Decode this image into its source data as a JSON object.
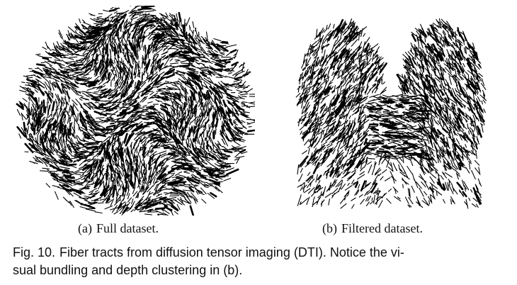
{
  "figure": {
    "panels": [
      {
        "tag": "(a)",
        "label": "Full dataset."
      },
      {
        "tag": "(b)",
        "label": "Filtered dataset."
      }
    ],
    "caption": {
      "label": "Fig. 10.",
      "line1": "Fiber tracts from diffusion tensor imaging (DTI). Notice the vi-",
      "line2": "sual bundling and depth clustering in (b)."
    }
  }
}
